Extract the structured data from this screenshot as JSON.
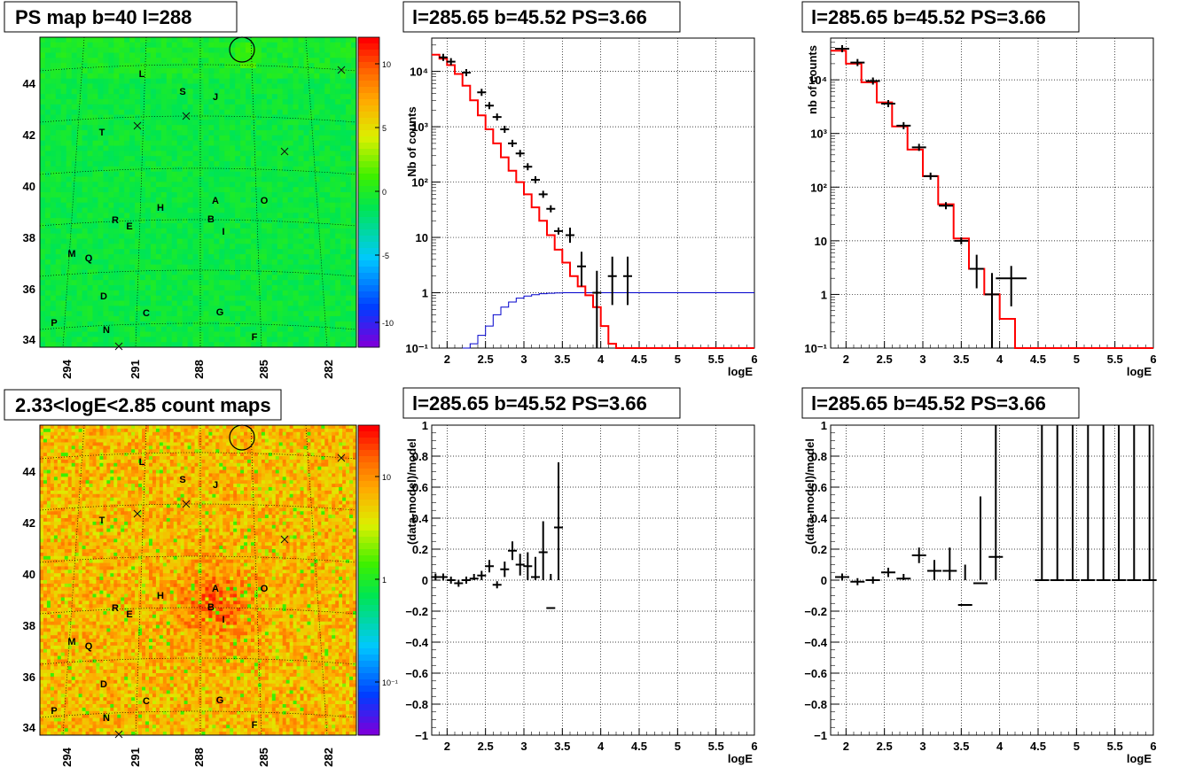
{
  "chart_data": [
    {
      "id": "ps_map",
      "type": "heatmap",
      "title": "PS map b=40 l=288",
      "x_ticks": [
        "294",
        "291",
        "288",
        "285",
        "282"
      ],
      "y_ticks": [
        "34",
        "36",
        "38",
        "40",
        "42",
        "44"
      ],
      "z_ticks": [
        "10",
        "5",
        "0",
        "-5",
        "-10"
      ],
      "zlim": [
        -12,
        12
      ],
      "dominant_level": "green (~0)",
      "labels": [
        "L",
        "S",
        "J",
        "T",
        "A",
        "O",
        "H",
        "R",
        "E",
        "B",
        "I",
        "M",
        "Q",
        "D",
        "C",
        "G",
        "P",
        "N",
        "F"
      ]
    },
    {
      "id": "spectrum_fine",
      "type": "line",
      "title": "l=285.65 b=45.52 PS=3.66",
      "xlabel": "logE",
      "ylabel": "Nb of counts",
      "xlim": [
        1.8,
        6
      ],
      "ylim": [
        0.1,
        40000
      ],
      "yscale": "log",
      "x_ticks": [
        "2",
        "2.5",
        "3",
        "3.5",
        "4",
        "4.5",
        "5",
        "5.5",
        "6"
      ],
      "y_ticks": [
        "10⁻¹",
        "1",
        "10",
        "10²",
        "10³",
        "10⁴"
      ],
      "grid": true,
      "series": [
        {
          "role": "model (red step)",
          "x": [
            1.8,
            1.9,
            2.0,
            2.1,
            2.2,
            2.3,
            2.4,
            2.5,
            2.6,
            2.7,
            2.8,
            2.9,
            3.0,
            3.1,
            3.2,
            3.3,
            3.4,
            3.5,
            3.6,
            3.7,
            3.8,
            3.9,
            4.0,
            4.1,
            4.2,
            4.3,
            4.4,
            4.5,
            5.0,
            5.5,
            6.0
          ],
          "y": [
            20000,
            17000,
            13000,
            9000,
            5500,
            3000,
            1600,
            900,
            500,
            280,
            160,
            100,
            60,
            35,
            20,
            11,
            6,
            3.5,
            2,
            1.3,
            0.9,
            0.55,
            0.25,
            0.12,
            0.1,
            0.1,
            0.1,
            0.1,
            0.1,
            0.1,
            0.1
          ]
        },
        {
          "role": "flat component (blue step)",
          "x": [
            2.2,
            2.3,
            2.4,
            2.5,
            2.6,
            2.7,
            2.8,
            2.9,
            3.0,
            3.1,
            3.2,
            3.3,
            3.4,
            3.5,
            4.0,
            5.0,
            6.0
          ],
          "y": [
            0.1,
            0.12,
            0.17,
            0.25,
            0.4,
            0.55,
            0.68,
            0.8,
            0.87,
            0.92,
            0.96,
            0.98,
            0.99,
            1,
            1,
            1,
            1
          ]
        },
        {
          "role": "data points",
          "x": [
            1.95,
            2.05,
            2.25,
            2.45,
            2.55,
            2.65,
            2.75,
            2.85,
            2.95,
            3.05,
            3.15,
            3.25,
            3.35,
            3.45,
            3.6,
            3.75,
            3.95,
            4.15,
            4.35
          ],
          "y": [
            18000,
            15000,
            9500,
            4200,
            2400,
            1500,
            900,
            500,
            330,
            190,
            110,
            60,
            33,
            13,
            11,
            3,
            1,
            2,
            2
          ],
          "yerr_lo": [
            0,
            0,
            0,
            0,
            0,
            0,
            0,
            0,
            0,
            0,
            0,
            0,
            0,
            0,
            3,
            1.7,
            0.9,
            1.4,
            1.4
          ],
          "yerr_hi": [
            0,
            0,
            0,
            0,
            0,
            0,
            0,
            0,
            0,
            0,
            0,
            0,
            0,
            0,
            4,
            2.5,
            1.5,
            2.5,
            2.5
          ]
        }
      ]
    },
    {
      "id": "spectrum_coarse",
      "type": "line",
      "title": "l=285.65 b=45.52 PS=3.66",
      "xlabel": "logE",
      "ylabel": "nb of counts",
      "xlim": [
        1.8,
        6
      ],
      "ylim": [
        0.1,
        60000
      ],
      "yscale": "log",
      "x_ticks": [
        "2",
        "2.5",
        "3",
        "3.5",
        "4",
        "4.5",
        "5",
        "5.5",
        "6"
      ],
      "y_ticks": [
        "10⁻¹",
        "1",
        "10",
        "10²",
        "10³",
        "10⁴"
      ],
      "grid": true,
      "series": [
        {
          "role": "model (red step)",
          "x": [
            1.8,
            2.0,
            2.2,
            2.4,
            2.6,
            2.8,
            3.0,
            3.2,
            3.4,
            3.6,
            3.8,
            4.0,
            4.2,
            4.4,
            5.0,
            6.0
          ],
          "y": [
            35000,
            20000,
            9000,
            3800,
            1350,
            500,
            160,
            48,
            11,
            3,
            1,
            0.35,
            0.1,
            0.1,
            0.1,
            0.1
          ]
        },
        {
          "role": "data points",
          "x": [
            1.95,
            2.15,
            2.35,
            2.55,
            2.75,
            2.95,
            3.1,
            3.3,
            3.5,
            3.7,
            3.9,
            4.15
          ],
          "y": [
            38000,
            21000,
            9500,
            3600,
            1400,
            550,
            160,
            45,
            10,
            3,
            1,
            2
          ],
          "yerr_lo": [
            0,
            0,
            0,
            0,
            0,
            0,
            0,
            0,
            0,
            1.7,
            0.9,
            1.4
          ],
          "yerr_hi": [
            0,
            0,
            0,
            0,
            0,
            0,
            0,
            0,
            0,
            2.5,
            1.5,
            1.4
          ],
          "xerr": [
            0,
            0,
            0,
            0,
            0,
            0,
            0,
            0,
            0,
            0,
            0,
            0.2
          ]
        }
      ]
    },
    {
      "id": "count_map",
      "type": "heatmap",
      "title": "2.33<logE<2.85 count maps",
      "x_ticks": [
        "294",
        "291",
        "288",
        "285",
        "282"
      ],
      "y_ticks": [
        "34",
        "36",
        "38",
        "40",
        "42",
        "44"
      ],
      "z_ticks": [
        "10",
        "1",
        "10⁻¹"
      ],
      "zscale": "log",
      "dominant_level": "orange (~3-5)",
      "hotspot_near": "A/B",
      "labels": [
        "L",
        "S",
        "J",
        "T",
        "A",
        "O",
        "H",
        "R",
        "E",
        "B",
        "I",
        "M",
        "Q",
        "D",
        "C",
        "G",
        "P",
        "N",
        "F"
      ]
    },
    {
      "id": "residual_fine",
      "type": "scatter",
      "title": "l=285.65 b=45.52 PS=3.66",
      "xlabel": "logE",
      "ylabel": "(data-model)/model",
      "xlim": [
        1.8,
        6
      ],
      "ylim": [
        -1,
        1
      ],
      "x_ticks": [
        "2",
        "2.5",
        "3",
        "3.5",
        "4",
        "4.5",
        "5",
        "5.5",
        "6"
      ],
      "y_ticks": [
        "−1",
        "−0.8",
        "−0.6",
        "−0.4",
        "−0.2",
        "0",
        "0.2",
        "0.4",
        "0.6",
        "0.8",
        "1"
      ],
      "grid": true,
      "x": [
        1.85,
        1.95,
        2.05,
        2.15,
        2.25,
        2.35,
        2.45,
        2.55,
        2.65,
        2.75,
        2.85,
        2.95,
        3.05,
        3.15,
        3.25,
        3.35,
        3.45
      ],
      "y": [
        0.02,
        0.02,
        0.0,
        -0.02,
        0.0,
        0.01,
        0.03,
        0.09,
        -0.03,
        0.07,
        0.19,
        0.1,
        0.09,
        0.02,
        0.18,
        -0.18,
        0.34
      ],
      "yerr": [
        0.01,
        0.01,
        0.02,
        0.02,
        0.02,
        0.03,
        0.03,
        0.04,
        0.04,
        0.05,
        0.06,
        0.07,
        0.09,
        0.13,
        0.2,
        0.22,
        0.42
      ]
    },
    {
      "id": "residual_coarse",
      "type": "scatter",
      "title": "l=285.65 b=45.52 PS=3.66",
      "xlabel": "logE",
      "ylabel": "(data-model)/model",
      "xlim": [
        1.8,
        6
      ],
      "ylim": [
        -1,
        1
      ],
      "x_ticks": [
        "2",
        "2.5",
        "3",
        "3.5",
        "4",
        "4.5",
        "5",
        "5.5",
        "6"
      ],
      "y_ticks": [
        "−1",
        "−0.8",
        "−0.6",
        "−0.4",
        "−0.2",
        "0",
        "0.2",
        "0.4",
        "0.6",
        "0.8",
        "1"
      ],
      "grid": true,
      "x": [
        1.95,
        2.15,
        2.35,
        2.55,
        2.75,
        2.95,
        3.15,
        3.35,
        3.55,
        3.75,
        3.95,
        4.55,
        4.75,
        4.95,
        5.15,
        5.35,
        5.55,
        5.75,
        5.95
      ],
      "y": [
        0.02,
        -0.01,
        0.0,
        0.05,
        0.01,
        0.16,
        0.06,
        0.06,
        -0.16,
        -0.02,
        0.15,
        0,
        0,
        0,
        0,
        0,
        0,
        0,
        0
      ],
      "yerr": [
        0.01,
        0.01,
        0.02,
        0.03,
        0.03,
        0.05,
        0.07,
        0.15,
        0.26,
        0.56,
        1.2,
        5,
        5,
        5,
        5,
        5,
        5,
        5,
        5
      ]
    }
  ]
}
